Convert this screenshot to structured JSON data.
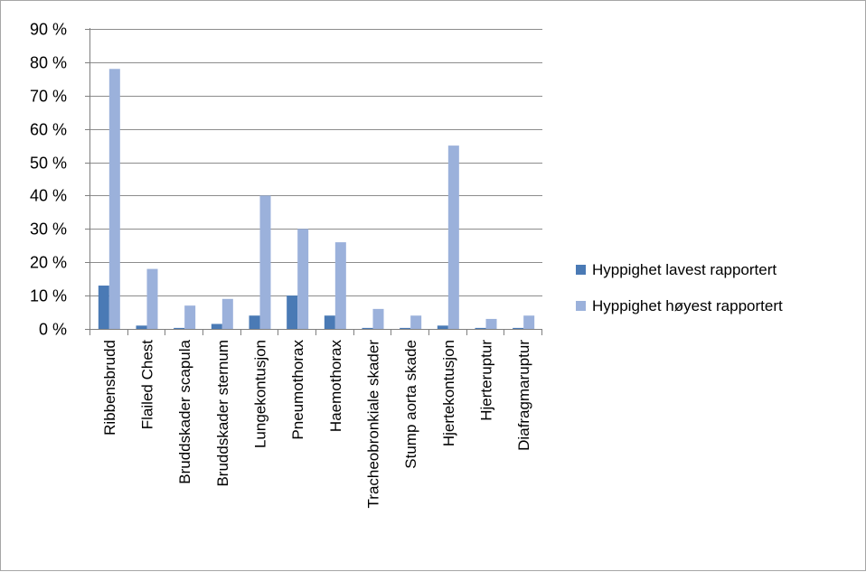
{
  "chart_data": {
    "type": "bar",
    "categories": [
      "Ribbensbrudd",
      "Flailed Chest",
      "Bruddskader scapula",
      "Bruddskader sternum",
      "Lungekontusjon",
      "Pneumothorax",
      "Haemothorax",
      "Tracheobronkiale skader",
      "Stump aorta skade",
      "Hjertekontusjon",
      "Hjerteruptur",
      "Diafragmaruptur"
    ],
    "series": [
      {
        "name": "Hyppighet lavest rapportert",
        "color": "#4a7ab5",
        "values": [
          13,
          1,
          0.3,
          1.5,
          4,
          10,
          4,
          0.3,
          0.3,
          1,
          0.3,
          0.3
        ]
      },
      {
        "name": "Hyppighet høyest rapportert",
        "color": "#9bb1db",
        "values": [
          78,
          18,
          7,
          9,
          40,
          30,
          26,
          6,
          4,
          55,
          3,
          4
        ]
      }
    ],
    "ylim": [
      0,
      90
    ],
    "yticks": [
      0,
      10,
      20,
      30,
      40,
      50,
      60,
      70,
      80,
      90
    ],
    "ytick_labels": [
      "0 %",
      "10 %",
      "20 %",
      "30 %",
      "40 %",
      "50 %",
      "60 %",
      "70 %",
      "80 %",
      "90 %"
    ],
    "title": "",
    "xlabel": "",
    "ylabel": "",
    "grid": true,
    "legend_position": "right",
    "gridline_color": "#8c8c8c"
  }
}
